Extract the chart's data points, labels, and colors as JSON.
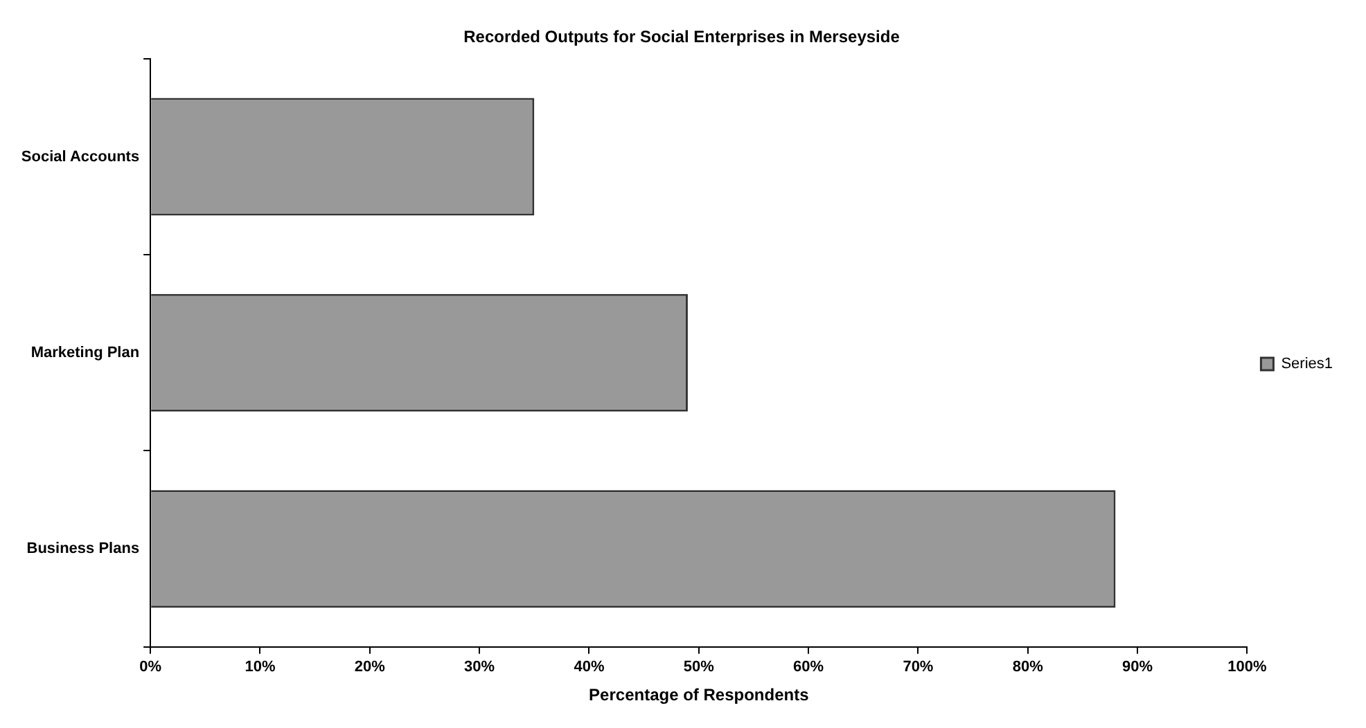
{
  "chart_data": {
    "type": "bar",
    "orientation": "horizontal",
    "title": "Recorded Outputs for Social Enterprises in Merseyside",
    "xlabel": "Percentage of Respondents",
    "categories": [
      "Social Accounts",
      "Marketing Plan",
      "Business Plans"
    ],
    "series": [
      {
        "name": "Series1",
        "color": "#999999",
        "values": [
          35,
          49,
          88
        ]
      }
    ],
    "xlim": [
      0,
      100
    ],
    "xticks": [
      {
        "value": 0,
        "label": "0%"
      },
      {
        "value": 10,
        "label": "10%"
      },
      {
        "value": 20,
        "label": "20%"
      },
      {
        "value": 30,
        "label": "30%"
      },
      {
        "value": 40,
        "label": "40%"
      },
      {
        "value": 50,
        "label": "50%"
      },
      {
        "value": 60,
        "label": "60%"
      },
      {
        "value": 70,
        "label": "70%"
      },
      {
        "value": 80,
        "label": "80%"
      },
      {
        "value": 90,
        "label": "90%"
      },
      {
        "value": 100,
        "label": "100%"
      }
    ],
    "legend": "right"
  }
}
